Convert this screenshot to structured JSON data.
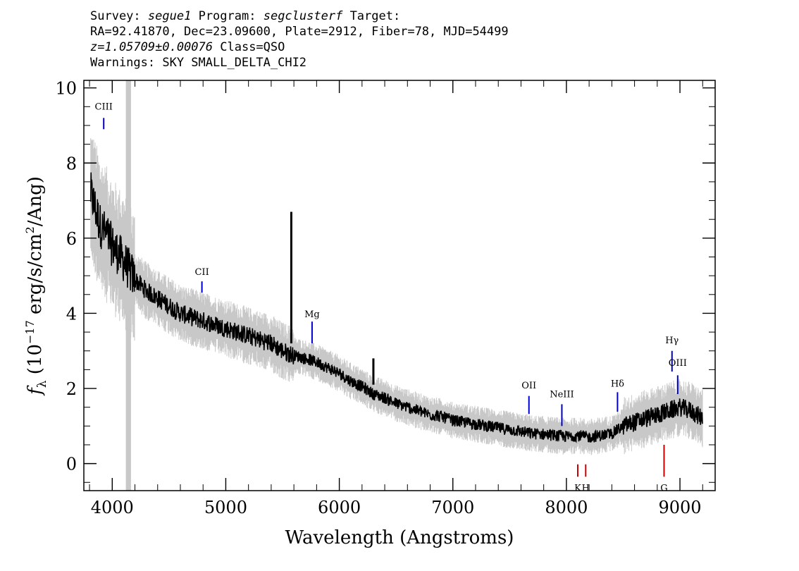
{
  "header": {
    "line1": {
      "survey_label": "Survey:",
      "survey": "segue1",
      "program_label": "Program:",
      "program": "segclusterf",
      "target_label": "Target:"
    },
    "line2": "RA=92.41870, Dec=23.09600, Plate=2912, Fiber=78, MJD=54499",
    "line3": {
      "redshift": "z=1.05709±0.00076",
      "class": "Class=QSO"
    },
    "line4": "Warnings: SKY SMALL_DELTA_CHI2"
  },
  "chart_data": {
    "type": "line",
    "xlabel": "Wavelength (Angstroms)",
    "ylabel_parts": {
      "f": "f",
      "sub": "λ",
      "pre": " (10",
      "exp1": "−17",
      "mid": " erg/s/cm",
      "exp2": "2",
      "post": "/Ang)"
    },
    "xlim": [
      3750,
      9310
    ],
    "ylim": [
      -0.72,
      10.2
    ],
    "x_ticks": [
      4000,
      5000,
      6000,
      7000,
      8000,
      9000
    ],
    "y_ticks": [
      0,
      2,
      4,
      6,
      8,
      10
    ],
    "grid": false,
    "masked_band": [
      4120,
      4165
    ],
    "series": [
      {
        "style": "black-line",
        "x": [
          3810,
          3850,
          3900,
          3950,
          4000,
          4050,
          4100,
          4200,
          4300,
          4400,
          4500,
          4600,
          4700,
          4800,
          4900,
          5000,
          5100,
          5200,
          5300,
          5400,
          5500,
          5580,
          5700,
          5800,
          5900,
          6000,
          6100,
          6200,
          6300,
          6400,
          6500,
          6600,
          6700,
          6800,
          6900,
          7000,
          7100,
          7200,
          7300,
          7400,
          7500,
          7600,
          7700,
          7800,
          7900,
          8000,
          8100,
          8200,
          8300,
          8400,
          8500,
          8600,
          8700,
          8800,
          8900,
          9000,
          9100,
          9200
        ],
        "y": [
          7.2,
          6.8,
          6.3,
          6.1,
          5.8,
          5.6,
          5.4,
          4.9,
          4.6,
          4.4,
          4.2,
          4.0,
          3.9,
          3.8,
          3.7,
          3.6,
          3.5,
          3.4,
          3.3,
          3.2,
          3.0,
          2.9,
          2.8,
          2.7,
          2.55,
          2.4,
          2.2,
          2.05,
          1.85,
          1.75,
          1.6,
          1.5,
          1.4,
          1.3,
          1.25,
          1.15,
          1.1,
          1.05,
          1.0,
          0.95,
          0.9,
          0.85,
          0.8,
          0.78,
          0.75,
          0.72,
          0.75,
          0.7,
          0.75,
          0.8,
          1.0,
          1.1,
          1.2,
          1.3,
          1.4,
          1.5,
          1.4,
          1.2
        ]
      }
    ],
    "spikes": [
      {
        "x": 5577,
        "y0": 3.2,
        "y1": 6.7
      },
      {
        "x": 6300,
        "y0": 2.1,
        "y1": 2.8
      }
    ],
    "emission_lines": [
      {
        "label": "CIII",
        "x": 3925,
        "y0": 8.9,
        "y1": 9.2,
        "label_y": 9.42
      },
      {
        "label": "CII",
        "x": 4790,
        "y0": 4.85,
        "y1": 4.55,
        "label_y": 5.02
      },
      {
        "label": "Mg",
        "x": 5760,
        "y0": 3.78,
        "y1": 3.2,
        "label_y": 3.9
      },
      {
        "label": "OII",
        "x": 7670,
        "y0": 1.8,
        "y1": 1.32,
        "label_y": 2.0
      },
      {
        "label": "NeIII",
        "x": 7960,
        "y0": 1.58,
        "y1": 1.0,
        "label_y": 1.77
      },
      {
        "label": "Hδ",
        "x": 8450,
        "y0": 1.9,
        "y1": 1.38,
        "label_y": 2.05
      },
      {
        "label": "Hγ",
        "x": 8930,
        "y0": 3.0,
        "y1": 2.45,
        "label_y": 3.2
      },
      {
        "label": "OIII",
        "x": 8980,
        "y0": 2.35,
        "y1": 1.85,
        "label_y": 2.6
      }
    ],
    "absorption_lines": [
      {
        "label": "K",
        "x": 8100,
        "y0": -0.02,
        "y1": -0.35,
        "label_y": -0.5
      },
      {
        "label": "H",
        "x": 8170,
        "y0": -0.02,
        "y1": -0.35,
        "label_y": -0.5
      },
      {
        "label": "G",
        "x": 8860,
        "y0": 0.5,
        "y1": -0.35,
        "label_y": -0.5
      }
    ],
    "colors": {
      "flux": "#000000",
      "error": "#c8c8c8",
      "emission": "#0000cc",
      "absorption": "#cc0000",
      "mask": "#c8c8c8"
    }
  }
}
